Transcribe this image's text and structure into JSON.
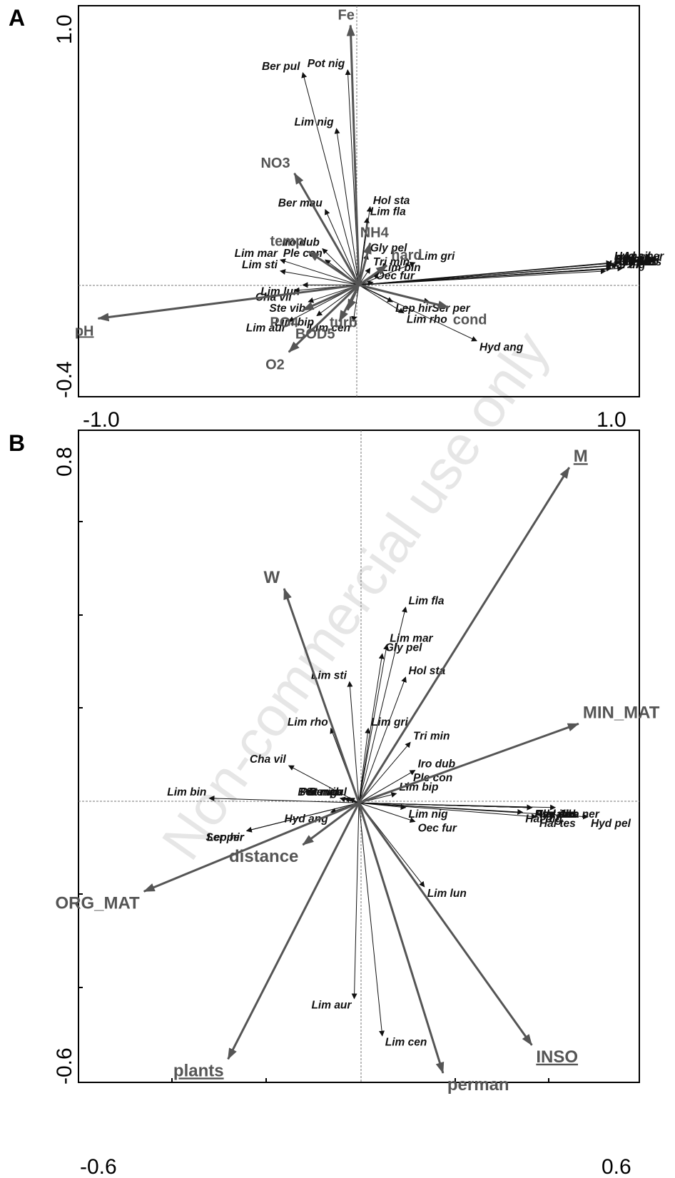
{
  "watermark": "Non-commercial use only",
  "chart_data": [
    {
      "type": "scatter",
      "panel": "A",
      "xlim": [
        -1.0,
        1.0
      ],
      "ylim": [
        -0.4,
        1.0
      ],
      "x_tick_labels": [
        "-1.0",
        "1.0"
      ],
      "y_tick_labels": [
        "-0.4",
        "1.0"
      ],
      "environmental_arrows": [
        {
          "label": "Fe",
          "x": -0.03,
          "y": 0.93,
          "underline": false
        },
        {
          "label": "NO3",
          "x": -0.23,
          "y": 0.4,
          "underline": false
        },
        {
          "label": "temp",
          "x": -0.18,
          "y": 0.12,
          "underline": false
        },
        {
          "label": "NH4",
          "x": 0.04,
          "y": 0.15,
          "underline": false
        },
        {
          "label": "hard",
          "x": 0.1,
          "y": 0.07,
          "underline": false
        },
        {
          "label": "pH",
          "x": -0.93,
          "y": -0.12,
          "underline": true
        },
        {
          "label": "cond",
          "x": 0.32,
          "y": -0.08,
          "underline": false
        },
        {
          "label": "turb",
          "x": -0.04,
          "y": -0.09,
          "underline": false
        },
        {
          "label": "PO4",
          "x": -0.2,
          "y": -0.09,
          "underline": false
        },
        {
          "label": "BOD5",
          "x": -0.07,
          "y": -0.13,
          "underline": false
        },
        {
          "label": "O2",
          "x": -0.25,
          "y": -0.24,
          "underline": false
        }
      ],
      "species": [
        {
          "label": "Ber pul",
          "x": -0.2,
          "y": 0.76
        },
        {
          "label": "Pot nig",
          "x": -0.04,
          "y": 0.77
        },
        {
          "label": "Lim nig",
          "x": -0.08,
          "y": 0.56
        },
        {
          "label": "Ber mau",
          "x": -0.12,
          "y": 0.27
        },
        {
          "label": "Hol sta",
          "x": 0.04,
          "y": 0.28
        },
        {
          "label": "Lim fla",
          "x": 0.03,
          "y": 0.24
        },
        {
          "label": "Iro dub",
          "x": -0.13,
          "y": 0.13
        },
        {
          "label": "Ple con",
          "x": -0.12,
          "y": 0.09
        },
        {
          "label": "Gly pel",
          "x": 0.03,
          "y": 0.11
        },
        {
          "label": "Lim mar",
          "x": -0.28,
          "y": 0.09
        },
        {
          "label": "Lim sti",
          "x": -0.28,
          "y": 0.05
        },
        {
          "label": "Tri min",
          "x": 0.04,
          "y": 0.06
        },
        {
          "label": "Lim gri",
          "x": 0.2,
          "y": 0.08
        },
        {
          "label": "Lim bin",
          "x": 0.07,
          "y": 0.04
        },
        {
          "label": "Oec fur",
          "x": 0.05,
          "y": 0.01
        },
        {
          "label": "Lim lun",
          "x": -0.2,
          "y": 0.0
        },
        {
          "label": "Cha vil",
          "x": -0.23,
          "y": -0.02
        },
        {
          "label": "Ste vib",
          "x": -0.18,
          "y": -0.06
        },
        {
          "label": "Lim aur",
          "x": -0.25,
          "y": -0.13
        },
        {
          "label": "Lim bip",
          "x": -0.15,
          "y": -0.11
        },
        {
          "label": "Lim cen",
          "x": -0.02,
          "y": -0.13
        },
        {
          "label": "Lep hir",
          "x": 0.12,
          "y": -0.06
        },
        {
          "label": "Ser per",
          "x": 0.25,
          "y": -0.06
        },
        {
          "label": "Lim rho",
          "x": 0.16,
          "y": -0.1
        },
        {
          "label": "Hyd ang",
          "x": 0.42,
          "y": -0.2
        },
        {
          "label": "Hyd sil",
          "x": 0.9,
          "y": 0.08
        },
        {
          "label": "Hyd sax",
          "x": 0.9,
          "y": 0.07
        },
        {
          "label": "Rhy nub",
          "x": 0.9,
          "y": 0.06
        },
        {
          "label": "Psy pus",
          "x": 0.9,
          "y": 0.06
        },
        {
          "label": "Ath alb",
          "x": 0.9,
          "y": 0.07
        },
        {
          "label": "Hyd inc",
          "x": 0.9,
          "y": 0.06
        },
        {
          "label": "Ana ner",
          "x": 0.93,
          "y": 0.08
        },
        {
          "label": "Hyd pel",
          "x": 0.92,
          "y": 0.07
        },
        {
          "label": "Hal tes",
          "x": 0.94,
          "y": 0.06
        },
        {
          "label": "Hal dig",
          "x": 0.88,
          "y": 0.05
        }
      ]
    },
    {
      "type": "scatter",
      "panel": "B",
      "xlim": [
        -0.6,
        0.6
      ],
      "ylim": [
        -0.6,
        0.8
      ],
      "x_tick_labels": [
        "-0.6",
        "0.6"
      ],
      "y_tick_labels": [
        "-0.6",
        "0.8"
      ],
      "environmental_arrows": [
        {
          "label": "M",
          "x": 0.45,
          "y": 0.72,
          "underline": true
        },
        {
          "label": "W",
          "x": -0.16,
          "y": 0.46,
          "underline": false
        },
        {
          "label": "MIN_MAT",
          "x": 0.47,
          "y": 0.17,
          "underline": false
        },
        {
          "label": "ORG_MAT",
          "x": -0.46,
          "y": -0.19,
          "underline": false
        },
        {
          "label": "distance",
          "x": -0.12,
          "y": -0.09,
          "underline": false
        },
        {
          "label": "plants",
          "x": -0.28,
          "y": -0.55,
          "underline": true
        },
        {
          "label": "perman",
          "x": 0.18,
          "y": -0.58,
          "underline": false
        },
        {
          "label": "INSO",
          "x": 0.37,
          "y": -0.52,
          "underline": true
        }
      ],
      "species": [
        {
          "label": "Lim fla",
          "x": 0.1,
          "y": 0.42
        },
        {
          "label": "Lim mar",
          "x": 0.06,
          "y": 0.34
        },
        {
          "label": "Gly pel",
          "x": 0.05,
          "y": 0.32
        },
        {
          "label": "Hol sta",
          "x": 0.1,
          "y": 0.27
        },
        {
          "label": "Lim sti",
          "x": -0.02,
          "y": 0.26
        },
        {
          "label": "Lim rho",
          "x": -0.06,
          "y": 0.16
        },
        {
          "label": "Lim gri",
          "x": 0.02,
          "y": 0.16
        },
        {
          "label": "Tri min",
          "x": 0.11,
          "y": 0.13
        },
        {
          "label": "Pot nig",
          "x": -0.04,
          "y": 0.01
        },
        {
          "label": "Ber mau",
          "x": -0.03,
          "y": 0.01
        },
        {
          "label": "Ste vib",
          "x": -0.03,
          "y": 0.01
        },
        {
          "label": "Ber pul",
          "x": -0.02,
          "y": 0.01
        },
        {
          "label": "Cha vil",
          "x": -0.15,
          "y": 0.08
        },
        {
          "label": "Iro dub",
          "x": 0.12,
          "y": 0.07
        },
        {
          "label": "Ple con",
          "x": 0.11,
          "y": 0.04
        },
        {
          "label": "Lim bip",
          "x": 0.08,
          "y": 0.02
        },
        {
          "label": "Lim bin",
          "x": -0.32,
          "y": 0.01
        },
        {
          "label": "Hyd ang",
          "x": -0.06,
          "y": -0.02
        },
        {
          "label": "Lep hir",
          "x": -0.24,
          "y": -0.06
        },
        {
          "label": "Ser per",
          "x": -0.24,
          "y": -0.06
        },
        {
          "label": "Lim nig",
          "x": 0.1,
          "y": -0.01
        },
        {
          "label": "Oec fur",
          "x": 0.12,
          "y": -0.04
        },
        {
          "label": "Hal dig",
          "x": 0.35,
          "y": -0.02
        },
        {
          "label": "Hal tes",
          "x": 0.38,
          "y": -0.03
        },
        {
          "label": "Hyd pel",
          "x": 0.49,
          "y": -0.03
        },
        {
          "label": "Ana ner",
          "x": 0.42,
          "y": -0.01
        },
        {
          "label": "Hyd sax",
          "x": 0.37,
          "y": -0.01
        },
        {
          "label": "Hyd sil",
          "x": 0.37,
          "y": -0.01
        },
        {
          "label": "Hyd inc",
          "x": 0.37,
          "y": -0.01
        },
        {
          "label": "Ath alb",
          "x": 0.37,
          "y": -0.01
        },
        {
          "label": "Rhy nub",
          "x": 0.37,
          "y": -0.01
        },
        {
          "label": "Psy pus",
          "x": 0.37,
          "y": -0.01
        },
        {
          "label": "Lim lun",
          "x": 0.14,
          "y": -0.18
        },
        {
          "label": "Lim aur",
          "x": -0.01,
          "y": -0.42
        },
        {
          "label": "Lim cen",
          "x": 0.05,
          "y": -0.5
        }
      ]
    }
  ]
}
